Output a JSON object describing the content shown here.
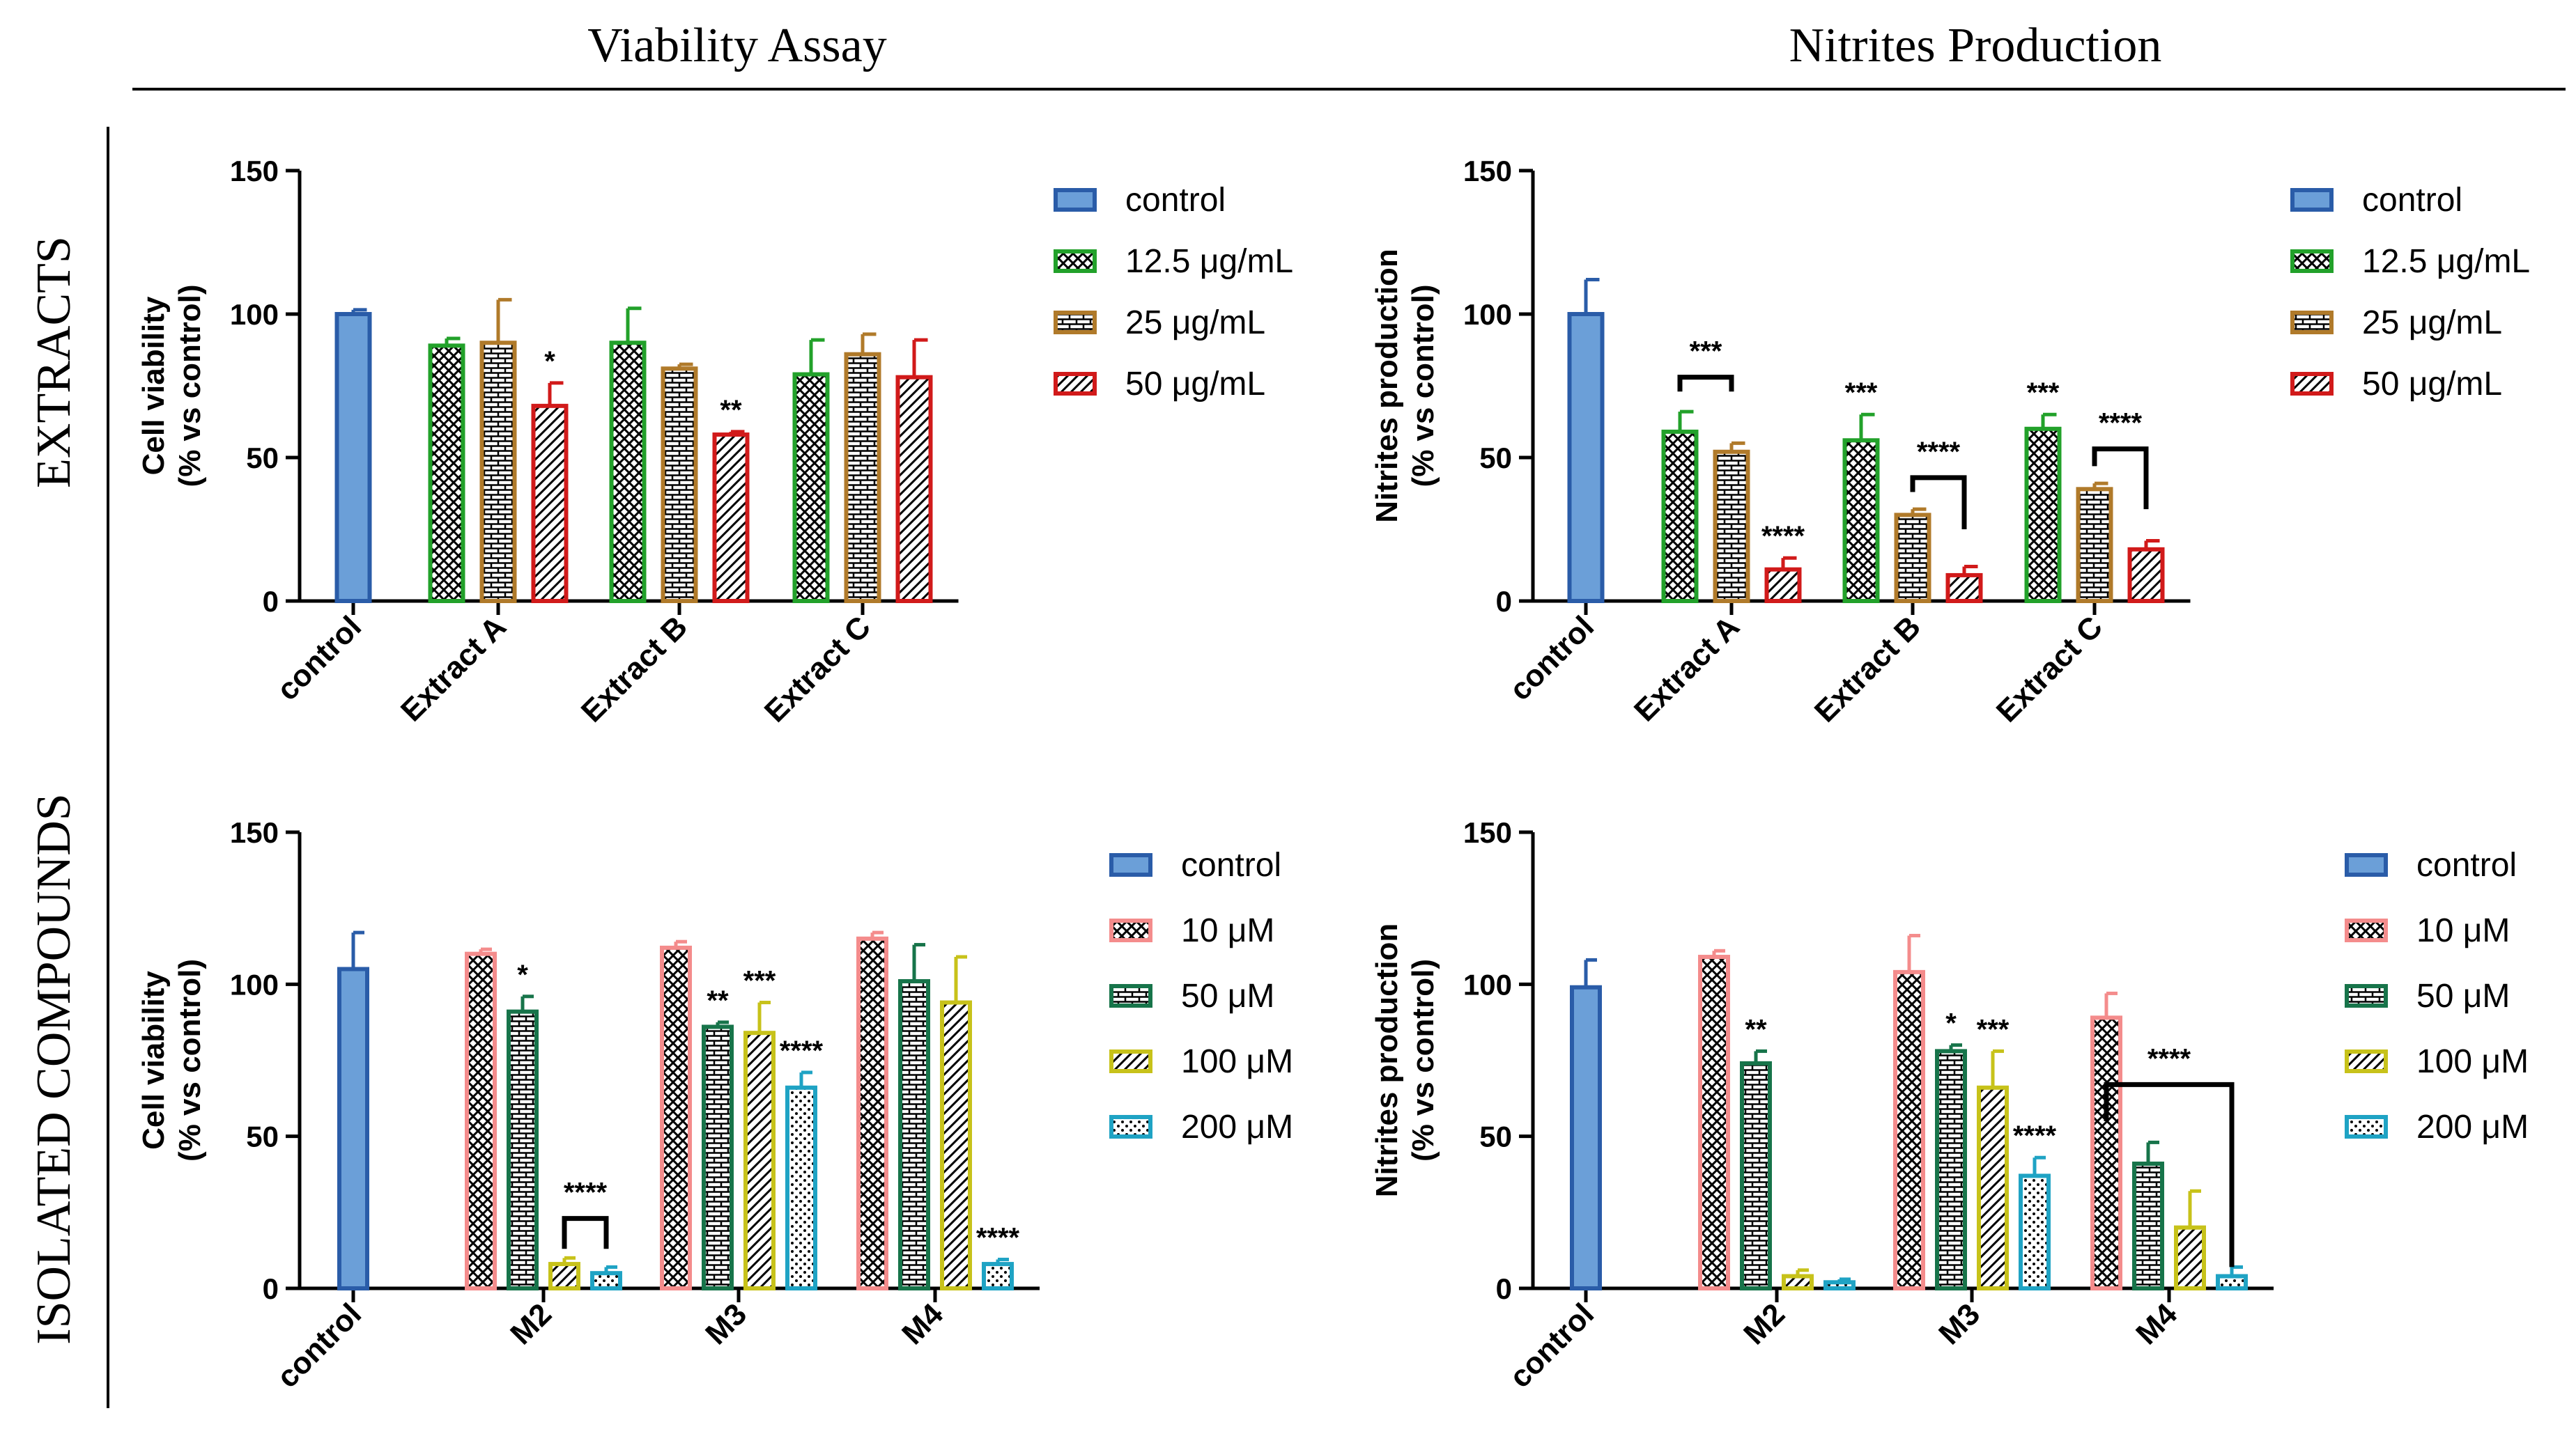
{
  "headers": {
    "col_left": "Viability Assay",
    "col_right": "Nitrites Production",
    "row_top": "EXTRACTS",
    "row_bottom": "ISOLATED COMPOUNDS"
  },
  "colors": {
    "control": "#2a5ca8",
    "control_fill": "#6b9fd8",
    "ext_12_5": "#22a12a",
    "ext_25": "#b07a2a",
    "ext_50": "#d11a1a",
    "cmp_10": "#f48c8c",
    "cmp_50": "#17744a",
    "cmp_100": "#c7c21a",
    "cmp_200": "#1fa3c4"
  },
  "chart_data": [
    {
      "id": "viability-extracts",
      "type": "bar",
      "ylabel": [
        "Cell viability",
        "(% vs control)"
      ],
      "ylim": [
        0,
        150
      ],
      "yticks": [
        "0",
        "50",
        "100",
        "150"
      ],
      "groups": [
        "control",
        "Extract A",
        "Extract B",
        "Extract C"
      ],
      "series": [
        {
          "name": "control",
          "color": "control",
          "pattern": "solid"
        },
        {
          "name": "12.5 μg/mL",
          "color": "ext_12_5",
          "pattern": "cross"
        },
        {
          "name": "25 μg/mL",
          "color": "ext_25",
          "pattern": "brick"
        },
        {
          "name": "50 μg/mL",
          "color": "ext_50",
          "pattern": "diag"
        }
      ],
      "bars": [
        {
          "group": 0,
          "series": 0,
          "value": 100,
          "err": 1.5
        },
        {
          "group": 1,
          "series": 1,
          "value": 89,
          "err": 2.5
        },
        {
          "group": 1,
          "series": 2,
          "value": 90,
          "err": 15
        },
        {
          "group": 1,
          "series": 3,
          "value": 68,
          "err": 8,
          "sig": "*"
        },
        {
          "group": 2,
          "series": 1,
          "value": 90,
          "err": 12
        },
        {
          "group": 2,
          "series": 2,
          "value": 81,
          "err": 1.5
        },
        {
          "group": 2,
          "series": 3,
          "value": 58,
          "err": 1,
          "sig": "**"
        },
        {
          "group": 3,
          "series": 1,
          "value": 79,
          "err": 12
        },
        {
          "group": 3,
          "series": 2,
          "value": 86,
          "err": 7
        },
        {
          "group": 3,
          "series": 3,
          "value": 78,
          "err": 13
        }
      ],
      "brackets": []
    },
    {
      "id": "nitrites-extracts",
      "type": "bar",
      "ylabel": [
        "Nitrites production",
        "(% vs control)"
      ],
      "ylim": [
        0,
        150
      ],
      "yticks": [
        "0",
        "50",
        "100",
        "150"
      ],
      "groups": [
        "control",
        "Extract A",
        "Extract B",
        "Extract C"
      ],
      "series": [
        {
          "name": "control",
          "color": "control",
          "pattern": "solid"
        },
        {
          "name": "12.5 μg/mL",
          "color": "ext_12_5",
          "pattern": "cross"
        },
        {
          "name": "25 μg/mL",
          "color": "ext_25",
          "pattern": "brick"
        },
        {
          "name": "50 μg/mL",
          "color": "ext_50",
          "pattern": "diag"
        }
      ],
      "bars": [
        {
          "group": 0,
          "series": 0,
          "value": 100,
          "err": 12
        },
        {
          "group": 1,
          "series": 1,
          "value": 59,
          "err": 7
        },
        {
          "group": 1,
          "series": 2,
          "value": 52,
          "err": 3
        },
        {
          "group": 1,
          "series": 3,
          "value": 11,
          "err": 4,
          "sig": "****"
        },
        {
          "group": 2,
          "series": 1,
          "value": 56,
          "err": 9,
          "sig": "***"
        },
        {
          "group": 2,
          "series": 2,
          "value": 30,
          "err": 2
        },
        {
          "group": 2,
          "series": 3,
          "value": 9,
          "err": 3
        },
        {
          "group": 3,
          "series": 1,
          "value": 60,
          "err": 5,
          "sig": "***"
        },
        {
          "group": 3,
          "series": 2,
          "value": 39,
          "err": 2
        },
        {
          "group": 3,
          "series": 3,
          "value": 18,
          "err": 3
        }
      ],
      "brackets": [
        {
          "group": 1,
          "from": 1,
          "to": 2,
          "y": 78,
          "drop1": 5,
          "drop2": 5,
          "label": "***"
        },
        {
          "group": 2,
          "from": 2,
          "to": 3,
          "y": 43,
          "drop1": 5,
          "drop2": 18,
          "label": "****"
        },
        {
          "group": 3,
          "from": 2,
          "to": 3,
          "y": 53,
          "drop1": 6,
          "drop2": 21,
          "label": "****"
        }
      ]
    },
    {
      "id": "viability-compounds",
      "type": "bar",
      "ylabel": [
        "Cell viability",
        "(% vs control)"
      ],
      "ylim": [
        0,
        150
      ],
      "yticks": [
        "0",
        "50",
        "100",
        "150"
      ],
      "groups": [
        "control",
        "M2",
        "M3",
        "M4"
      ],
      "series": [
        {
          "name": "control",
          "color": "control",
          "pattern": "solid"
        },
        {
          "name": "10 μM",
          "color": "cmp_10",
          "pattern": "cross"
        },
        {
          "name": "50 μM",
          "color": "cmp_50",
          "pattern": "brick"
        },
        {
          "name": "100 μM",
          "color": "cmp_100",
          "pattern": "diag"
        },
        {
          "name": "200 μM",
          "color": "cmp_200",
          "pattern": "dots"
        }
      ],
      "bars": [
        {
          "group": 0,
          "series": 0,
          "value": 105,
          "err": 12
        },
        {
          "group": 1,
          "series": 1,
          "value": 110,
          "err": 1.5
        },
        {
          "group": 1,
          "series": 2,
          "value": 91,
          "err": 5,
          "sig": "*"
        },
        {
          "group": 1,
          "series": 3,
          "value": 8,
          "err": 2
        },
        {
          "group": 1,
          "series": 4,
          "value": 5,
          "err": 2
        },
        {
          "group": 2,
          "series": 1,
          "value": 112,
          "err": 2
        },
        {
          "group": 2,
          "series": 2,
          "value": 86,
          "err": 1.5,
          "sig": "**"
        },
        {
          "group": 2,
          "series": 3,
          "value": 84,
          "err": 10,
          "sig": "***"
        },
        {
          "group": 2,
          "series": 4,
          "value": 66,
          "err": 5,
          "sig": "****"
        },
        {
          "group": 3,
          "series": 1,
          "value": 115,
          "err": 2
        },
        {
          "group": 3,
          "series": 2,
          "value": 101,
          "err": 12
        },
        {
          "group": 3,
          "series": 3,
          "value": 94,
          "err": 15
        },
        {
          "group": 3,
          "series": 4,
          "value": 8,
          "err": 1.5,
          "sig": "****"
        }
      ],
      "brackets": [
        {
          "group": 1,
          "from": 3,
          "to": 4,
          "y": 23,
          "drop1": 10,
          "drop2": 10,
          "label": "****"
        }
      ]
    },
    {
      "id": "nitrites-compounds",
      "type": "bar",
      "ylabel": [
        "Nitrites production",
        "(% vs control)"
      ],
      "ylim": [
        0,
        150
      ],
      "yticks": [
        "0",
        "50",
        "100",
        "150"
      ],
      "groups": [
        "control",
        "M2",
        "M3",
        "M4"
      ],
      "series": [
        {
          "name": "control",
          "color": "control",
          "pattern": "solid"
        },
        {
          "name": "10 μM",
          "color": "cmp_10",
          "pattern": "cross"
        },
        {
          "name": "50 μM",
          "color": "cmp_50",
          "pattern": "brick"
        },
        {
          "name": "100 μM",
          "color": "cmp_100",
          "pattern": "diag"
        },
        {
          "name": "200 μM",
          "color": "cmp_200",
          "pattern": "dots"
        }
      ],
      "bars": [
        {
          "group": 0,
          "series": 0,
          "value": 99,
          "err": 9
        },
        {
          "group": 1,
          "series": 1,
          "value": 109,
          "err": 2
        },
        {
          "group": 1,
          "series": 2,
          "value": 74,
          "err": 4,
          "sig": "**"
        },
        {
          "group": 1,
          "series": 3,
          "value": 4,
          "err": 2
        },
        {
          "group": 1,
          "series": 4,
          "value": 2,
          "err": 1
        },
        {
          "group": 2,
          "series": 1,
          "value": 104,
          "err": 12
        },
        {
          "group": 2,
          "series": 2,
          "value": 78,
          "err": 2,
          "sig": "*"
        },
        {
          "group": 2,
          "series": 3,
          "value": 66,
          "err": 12,
          "sig": "***"
        },
        {
          "group": 2,
          "series": 4,
          "value": 37,
          "err": 6,
          "sig": "****"
        },
        {
          "group": 3,
          "series": 1,
          "value": 89,
          "err": 8
        },
        {
          "group": 3,
          "series": 2,
          "value": 41,
          "err": 7
        },
        {
          "group": 3,
          "series": 3,
          "value": 20,
          "err": 12
        },
        {
          "group": 3,
          "series": 4,
          "value": 4,
          "err": 3
        }
      ],
      "brackets": [
        {
          "group": 3,
          "from": 1,
          "to": 4,
          "y": 67,
          "drop1": 12,
          "drop2": 60,
          "label": "****"
        }
      ]
    }
  ]
}
